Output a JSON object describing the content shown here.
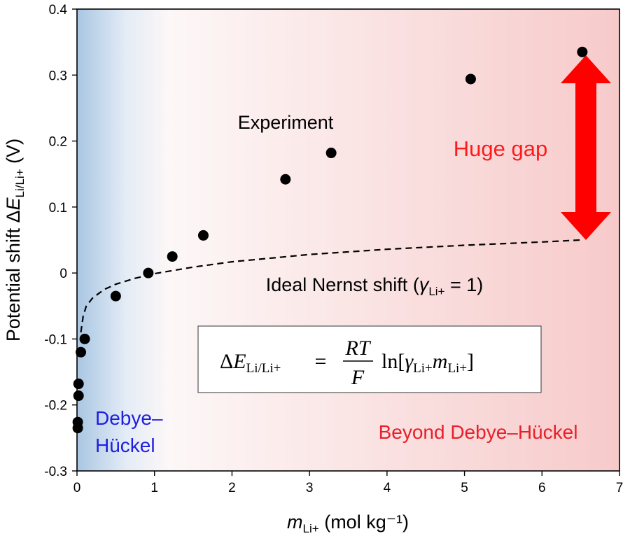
{
  "chart_data": {
    "type": "scatter",
    "xlim": [
      0,
      7
    ],
    "ylim": [
      -0.3,
      0.4
    ],
    "x_ticks": [
      "0",
      "1",
      "2",
      "3",
      "4",
      "5",
      "6",
      "7"
    ],
    "y_ticks": [
      "0.4",
      "0.3",
      "0.2",
      "0.1",
      "0",
      "-0.1",
      "-0.2",
      "-0.3"
    ],
    "xlabel": {
      "main": "m",
      "sub": "Li+",
      "rest": " (mol kg⁻¹)"
    },
    "ylabel": {
      "main": "Potential shift Δ",
      "var": "E",
      "sub": "Li/Li+",
      "rest": " (V)"
    },
    "grid": false,
    "series": [
      {
        "name": "Experiment",
        "style": "markers",
        "color": "#000000",
        "points": [
          [
            0.01,
            -0.235
          ],
          [
            0.01,
            -0.226
          ],
          [
            0.02,
            -0.186
          ],
          [
            0.02,
            -0.168
          ],
          [
            0.05,
            -0.12
          ],
          [
            0.1,
            -0.1
          ],
          [
            0.5,
            -0.035
          ],
          [
            0.92,
            0.0
          ],
          [
            1.23,
            0.025
          ],
          [
            1.63,
            0.057
          ],
          [
            2.69,
            0.142
          ],
          [
            3.28,
            0.182
          ],
          [
            5.08,
            0.294
          ],
          [
            6.52,
            0.335
          ]
        ]
      },
      {
        "name": "Ideal Nernst shift",
        "style": "dashed",
        "color": "#000000",
        "points": [
          [
            0.05,
            -0.09
          ],
          [
            0.08,
            -0.065
          ],
          [
            0.12,
            -0.05
          ],
          [
            0.2,
            -0.038
          ],
          [
            0.35,
            -0.025
          ],
          [
            0.5,
            -0.017
          ],
          [
            0.75,
            -0.008
          ],
          [
            1.0,
            -0.001
          ],
          [
            1.5,
            0.009
          ],
          [
            2.0,
            0.017
          ],
          [
            3.0,
            0.028
          ],
          [
            4.0,
            0.036
          ],
          [
            5.0,
            0.042
          ],
          [
            6.0,
            0.047
          ],
          [
            6.5,
            0.05
          ]
        ]
      }
    ],
    "annotations": {
      "experiment": "Experiment",
      "nernst": {
        "main": "Ideal Nernst shift (",
        "var": "γ",
        "sub": "Li+",
        "rest": " = 1)"
      },
      "huge_gap": "Huge gap",
      "region_left_1": "Debye–",
      "region_left_2": "Hückel",
      "region_right": "Beyond Debye–Hückel",
      "gap_arrow_range": [
        0.05,
        0.33
      ]
    },
    "equation": {
      "delta": "Δ",
      "E": "E",
      "E_sub": "Li/Li+",
      "equals": "=",
      "num": "RT",
      "den": "F",
      "ln": "ln[",
      "gamma": "γ",
      "gamma_sub": "Li+",
      "m": "m",
      "m_sub": "Li+",
      "close": "]"
    },
    "colors": {
      "left_region": "#a9c6e3",
      "right_region": "#f7caca",
      "debye_text": "#1f1fe0",
      "beyond_text": "#e8202a",
      "arrow": "#ff0000",
      "gap_text": "#ff1a1a"
    }
  }
}
